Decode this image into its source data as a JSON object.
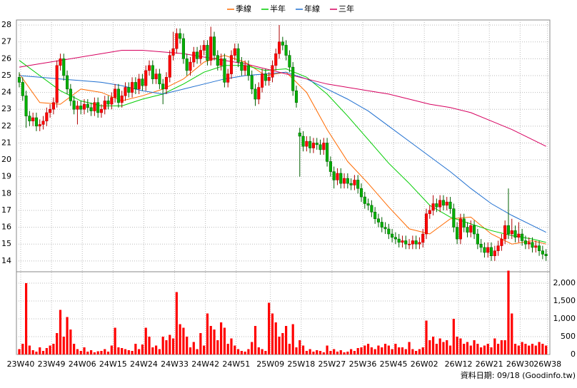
{
  "chart_data": {
    "type": "candlestick",
    "categories": [
      "23W40",
      null,
      null,
      null,
      null,
      null,
      null,
      null,
      null,
      "23W49",
      null,
      null,
      null,
      null,
      null,
      null,
      null,
      null,
      "24W06",
      null,
      null,
      null,
      null,
      null,
      null,
      null,
      null,
      "24W15",
      null,
      null,
      null,
      null,
      null,
      null,
      null,
      null,
      "24W24",
      null,
      null,
      null,
      null,
      null,
      null,
      null,
      null,
      "24W33",
      null,
      null,
      null,
      null,
      null,
      null,
      null,
      null,
      "24W42",
      null,
      null,
      null,
      null,
      null,
      null,
      null,
      null,
      "24W51",
      null,
      null,
      null,
      null,
      null,
      null,
      null,
      null,
      null,
      "25W09",
      null,
      null,
      null,
      null,
      null,
      null,
      null,
      null,
      "25W18",
      null,
      null,
      null,
      null,
      null,
      null,
      null,
      null,
      "25W27",
      null,
      null,
      null,
      null,
      null,
      null,
      null,
      null,
      "25W36",
      null,
      null,
      null,
      null,
      null,
      null,
      null,
      null,
      "25W45",
      null,
      null,
      null,
      null,
      null,
      null,
      null,
      null,
      "26W02",
      null,
      null,
      null,
      null,
      null,
      null,
      null,
      null,
      null,
      "26W12",
      null,
      null,
      null,
      null,
      null,
      null,
      null,
      null,
      "26W21",
      null,
      null,
      null,
      null,
      null,
      null,
      null,
      null,
      "26W30",
      null,
      null,
      null,
      null,
      null,
      null,
      null,
      "26W38"
    ],
    "open": [
      24.9,
      24.6,
      23.8,
      22.6,
      22.3,
      22.5,
      22.0,
      22.1,
      22.3,
      22.8,
      23.0,
      23.4,
      25.6,
      26.0,
      25.0,
      24.2,
      23.5,
      23.0,
      23.2,
      23.0,
      23.3,
      23.1,
      22.9,
      23.4,
      22.8,
      23.0,
      23.5,
      23.3,
      23.7,
      24.2,
      23.4,
      23.8,
      24.3,
      24.0,
      24.6,
      24.2,
      24.8,
      24.4,
      25.3,
      25.6,
      24.8,
      25.1,
      24.5,
      24.2,
      24.9,
      26.2,
      26.6,
      27.5,
      27.2,
      26.0,
      25.3,
      25.8,
      26.4,
      26.0,
      26.5,
      26.8,
      25.9,
      27.3,
      26.2,
      25.6,
      26.0,
      24.6,
      25.1,
      26.2,
      26.6,
      25.8,
      25.3,
      25.6,
      25.0,
      24.2,
      23.6,
      24.3,
      25.1,
      24.7,
      24.9,
      25.6,
      26.3,
      27.0,
      26.8,
      26.2,
      25.5,
      24.1,
      21.6,
      21.4,
      20.8,
      21.1,
      20.7,
      21.0,
      20.9,
      20.6,
      21.0,
      19.9,
      19.3,
      18.8,
      19.2,
      18.6,
      18.9,
      18.6,
      18.5,
      18.8,
      18.3,
      17.8,
      17.4,
      17.3,
      16.9,
      16.5,
      16.3,
      16.0,
      15.9,
      15.6,
      15.4,
      15.3,
      15.1,
      15.2,
      15.0,
      15.0,
      15.2,
      15.0,
      15.1,
      15.6,
      16.8,
      17.0,
      17.4,
      17.2,
      17.6,
      17.3,
      17.5,
      17.1,
      16.0,
      15.3,
      16.5,
      16.0,
      15.7,
      16.1,
      15.6,
      15.0,
      14.8,
      14.5,
      14.8,
      14.3,
      14.6,
      14.9,
      15.3,
      16.1,
      15.6,
      15.8,
      15.4,
      15.6,
      15.2,
      15.0,
      15.1,
      14.8,
      14.9,
      14.6,
      14.4
    ],
    "high": [
      25.2,
      24.9,
      24.1,
      22.9,
      22.8,
      22.8,
      22.4,
      22.6,
      23.1,
      23.3,
      23.7,
      25.9,
      26.3,
      26.3,
      25.3,
      24.5,
      23.8,
      23.5,
      23.5,
      23.6,
      23.6,
      23.4,
      23.7,
      23.7,
      23.3,
      23.8,
      23.8,
      24.0,
      24.5,
      24.5,
      24.1,
      24.6,
      24.6,
      24.9,
      24.9,
      25.1,
      25.1,
      25.6,
      25.9,
      25.9,
      25.4,
      25.4,
      24.8,
      25.2,
      26.5,
      27.6,
      27.8,
      27.8,
      27.5,
      26.3,
      26.1,
      26.7,
      26.7,
      26.8,
      27.1,
      27.1,
      27.9,
      27.6,
      26.5,
      26.3,
      26.3,
      25.4,
      26.5,
      26.9,
      26.9,
      26.1,
      25.9,
      25.9,
      25.3,
      24.5,
      24.6,
      25.4,
      25.4,
      25.2,
      25.9,
      26.6,
      28.0,
      27.3,
      27.1,
      26.5,
      25.8,
      24.4,
      21.9,
      21.7,
      21.4,
      21.4,
      21.3,
      21.3,
      21.2,
      21.3,
      21.3,
      20.2,
      19.6,
      19.5,
      19.5,
      19.2,
      19.2,
      18.9,
      19.1,
      19.1,
      18.6,
      18.1,
      17.7,
      17.6,
      17.2,
      16.8,
      16.6,
      16.3,
      16.2,
      15.9,
      15.7,
      15.6,
      15.5,
      15.5,
      15.3,
      15.5,
      15.5,
      15.4,
      15.9,
      17.1,
      17.3,
      17.9,
      17.7,
      17.9,
      17.9,
      17.8,
      17.8,
      17.4,
      16.3,
      16.8,
      16.8,
      16.3,
      16.4,
      16.4,
      15.9,
      15.3,
      15.1,
      15.1,
      15.1,
      14.9,
      15.2,
      15.6,
      16.4,
      18.3,
      16.5,
      16.1,
      16.3,
      15.9,
      15.5,
      15.4,
      15.4,
      15.2,
      15.2,
      14.9,
      14.7
    ],
    "low": [
      24.3,
      23.5,
      21.9,
      22.0,
      22.0,
      21.7,
      21.7,
      21.8,
      22.0,
      22.5,
      22.7,
      23.1,
      25.3,
      24.7,
      23.9,
      23.2,
      22.7,
      22.1,
      22.7,
      22.7,
      22.8,
      22.6,
      22.6,
      22.5,
      22.5,
      22.7,
      23.0,
      23.0,
      23.4,
      23.1,
      23.1,
      23.5,
      23.7,
      23.7,
      23.9,
      23.9,
      24.1,
      24.1,
      25.0,
      24.5,
      24.5,
      24.2,
      23.3,
      23.9,
      24.6,
      25.9,
      26.3,
      26.9,
      25.7,
      25.0,
      25.0,
      25.5,
      25.7,
      25.7,
      26.2,
      25.6,
      25.6,
      25.9,
      25.3,
      25.3,
      24.3,
      24.3,
      24.8,
      25.9,
      25.5,
      25.0,
      25.0,
      24.7,
      23.9,
      23.2,
      23.3,
      24.0,
      24.4,
      24.4,
      24.6,
      25.3,
      26.0,
      26.5,
      25.9,
      25.2,
      23.8,
      23.1,
      19.0,
      20.5,
      20.5,
      20.4,
      20.4,
      20.6,
      20.3,
      20.3,
      19.6,
      19.0,
      18.3,
      18.5,
      18.3,
      18.3,
      18.3,
      18.2,
      18.2,
      18.0,
      17.5,
      17.1,
      17.0,
      16.6,
      16.2,
      16.0,
      15.7,
      15.6,
      15.3,
      15.1,
      15.0,
      14.8,
      14.8,
      14.7,
      14.7,
      14.7,
      14.7,
      14.7,
      14.8,
      15.3,
      16.5,
      16.7,
      16.9,
      16.9,
      17.0,
      17.0,
      16.8,
      15.7,
      15.0,
      15.0,
      15.7,
      15.4,
      15.4,
      15.3,
      14.7,
      14.5,
      14.2,
      14.2,
      14.0,
      14.0,
      14.3,
      14.6,
      15.0,
      15.3,
      15.3,
      15.1,
      15.1,
      14.9,
      14.7,
      14.7,
      14.5,
      14.5,
      14.3,
      14.1,
      14.0
    ],
    "close": [
      24.6,
      23.8,
      22.6,
      22.3,
      22.5,
      22.0,
      22.1,
      22.3,
      22.8,
      23.0,
      23.4,
      25.6,
      26.0,
      25.0,
      24.2,
      23.5,
      23.0,
      23.2,
      23.0,
      23.3,
      23.1,
      22.9,
      23.4,
      22.8,
      23.0,
      23.5,
      23.3,
      23.7,
      24.2,
      23.4,
      23.8,
      24.3,
      24.0,
      24.6,
      24.2,
      24.8,
      24.4,
      25.3,
      25.6,
      24.8,
      25.1,
      24.5,
      24.2,
      24.9,
      26.2,
      26.6,
      27.5,
      27.2,
      26.0,
      25.3,
      25.8,
      26.4,
      26.0,
      26.5,
      26.8,
      25.9,
      27.3,
      26.2,
      25.6,
      26.0,
      24.6,
      25.1,
      26.2,
      26.6,
      25.8,
      25.3,
      25.6,
      25.0,
      24.2,
      23.6,
      24.3,
      25.1,
      24.7,
      24.9,
      25.6,
      26.3,
      27.0,
      26.8,
      26.2,
      25.5,
      24.1,
      23.4,
      21.4,
      20.8,
      21.1,
      20.7,
      21.0,
      20.9,
      20.6,
      21.0,
      19.9,
      19.3,
      18.8,
      19.2,
      18.6,
      18.9,
      18.6,
      18.5,
      18.8,
      18.3,
      17.8,
      17.4,
      17.3,
      16.9,
      16.5,
      16.3,
      16.0,
      15.9,
      15.6,
      15.4,
      15.3,
      15.1,
      15.2,
      15.0,
      15.0,
      15.2,
      15.0,
      15.1,
      15.6,
      16.8,
      17.0,
      17.4,
      17.2,
      17.6,
      17.3,
      17.5,
      17.1,
      16.0,
      15.3,
      16.5,
      16.0,
      15.7,
      16.1,
      15.6,
      15.0,
      14.8,
      14.5,
      14.8,
      14.3,
      14.6,
      14.9,
      15.3,
      16.1,
      15.6,
      15.8,
      15.4,
      15.6,
      15.2,
      15.0,
      15.1,
      14.8,
      14.9,
      14.6,
      14.4,
      14.3
    ],
    "up_color": "#ff0000",
    "down_color": "#00b000",
    "lines": [
      {
        "name": "季線",
        "color": "#ff6a00",
        "x": [
          0,
          6,
          12,
          18,
          24,
          30,
          36,
          42,
          48,
          54,
          60,
          66,
          72,
          78,
          84,
          90,
          96,
          102,
          108,
          114,
          120,
          126,
          132,
          138,
          144,
          150,
          154
        ],
        "values": [
          25.1,
          23.4,
          23.3,
          24.2,
          24.0,
          23.5,
          23.8,
          24.2,
          24.8,
          25.8,
          26.2,
          25.8,
          25.0,
          25.2,
          24.0,
          21.8,
          19.9,
          18.6,
          17.2,
          15.9,
          15.6,
          16.5,
          16.6,
          15.6,
          15.0,
          15.2,
          15.0
        ]
      },
      {
        "name": "半年",
        "color": "#00cc00",
        "x": [
          0,
          6,
          12,
          18,
          24,
          30,
          36,
          42,
          48,
          54,
          60,
          66,
          72,
          78,
          84,
          90,
          96,
          102,
          108,
          114,
          120,
          126,
          132,
          138,
          144,
          150,
          154
        ],
        "values": [
          25.9,
          25.0,
          24.1,
          23.5,
          23.2,
          23.2,
          23.6,
          23.9,
          24.5,
          25.2,
          25.6,
          25.6,
          25.3,
          25.4,
          24.9,
          23.9,
          22.6,
          21.2,
          19.8,
          18.6,
          17.3,
          16.6,
          16.2,
          15.8,
          15.5,
          15.3,
          15.1
        ]
      },
      {
        "name": "年線",
        "color": "#1f6fd0",
        "x": [
          0,
          6,
          12,
          18,
          24,
          30,
          36,
          42,
          48,
          54,
          60,
          66,
          72,
          78,
          84,
          90,
          96,
          102,
          108,
          114,
          120,
          126,
          132,
          138,
          144,
          150,
          154
        ],
        "values": [
          25.0,
          24.9,
          24.8,
          24.7,
          24.6,
          24.4,
          24.1,
          23.9,
          24.2,
          24.5,
          24.8,
          25.0,
          25.1,
          25.2,
          24.8,
          24.2,
          23.6,
          22.9,
          22.0,
          21.1,
          20.2,
          19.3,
          18.3,
          17.4,
          16.7,
          16.1,
          15.7
        ]
      },
      {
        "name": "三年",
        "color": "#d6005f",
        "x": [
          0,
          6,
          12,
          18,
          24,
          30,
          36,
          42,
          48,
          54,
          60,
          66,
          72,
          78,
          84,
          90,
          96,
          102,
          108,
          114,
          120,
          126,
          132,
          138,
          144,
          150,
          154
        ],
        "values": [
          25.5,
          25.7,
          25.9,
          26.1,
          26.3,
          26.5,
          26.5,
          26.4,
          26.3,
          26.1,
          25.9,
          25.7,
          25.4,
          25.1,
          24.8,
          24.5,
          24.3,
          24.1,
          23.9,
          23.6,
          23.3,
          23.1,
          22.8,
          22.3,
          21.8,
          21.2,
          20.8
        ]
      }
    ],
    "volume": {
      "color": "#ff0000",
      "axis": "y2",
      "values": [
        150,
        300,
        2000,
        250,
        120,
        80,
        200,
        100,
        180,
        250,
        300,
        600,
        1250,
        500,
        1050,
        700,
        300,
        150,
        100,
        200,
        80,
        120,
        60,
        90,
        100,
        150,
        80,
        250,
        750,
        200,
        180,
        150,
        120,
        100,
        300,
        150,
        280,
        750,
        500,
        200,
        250,
        150,
        500,
        400,
        550,
        450,
        1750,
        850,
        750,
        500,
        200,
        350,
        150,
        600,
        250,
        1150,
        800,
        700,
        400,
        900,
        750,
        300,
        450,
        250,
        150,
        100,
        80,
        150,
        350,
        800,
        200,
        150,
        100,
        1450,
        1150,
        900,
        500,
        600,
        800,
        300,
        850,
        200,
        400,
        250,
        100,
        150,
        80,
        120,
        100,
        60,
        250,
        100,
        150,
        80,
        120,
        60,
        80,
        150,
        100,
        180,
        200,
        250,
        300,
        200,
        150,
        250,
        200,
        300,
        250,
        150,
        300,
        200,
        200,
        150,
        350,
        150,
        100,
        150,
        200,
        950,
        400,
        500,
        300,
        450,
        350,
        400,
        250,
        1000,
        500,
        450,
        300,
        350,
        250,
        400,
        300,
        200,
        250,
        300,
        200,
        450,
        300,
        400,
        400,
        2350,
        1150,
        300,
        250,
        350,
        300,
        250,
        300,
        250,
        350,
        300,
        250
      ]
    },
    "ylim": [
      13.4,
      28.3
    ],
    "yticks": [
      14,
      15,
      16,
      17,
      18,
      19,
      20,
      21,
      22,
      23,
      24,
      25,
      26,
      27,
      28
    ],
    "y2lim": [
      0,
      2300
    ],
    "y2ticks": [
      0,
      500,
      {
        "value": 1000,
        "label": "1,000"
      },
      {
        "value": 1500,
        "label": "1,500"
      },
      {
        "value": 2000,
        "label": "2,000"
      }
    ],
    "grid": true,
    "legend": "top",
    "source_note": "資料日期: 09/18  (Goodinfo.tw)"
  }
}
